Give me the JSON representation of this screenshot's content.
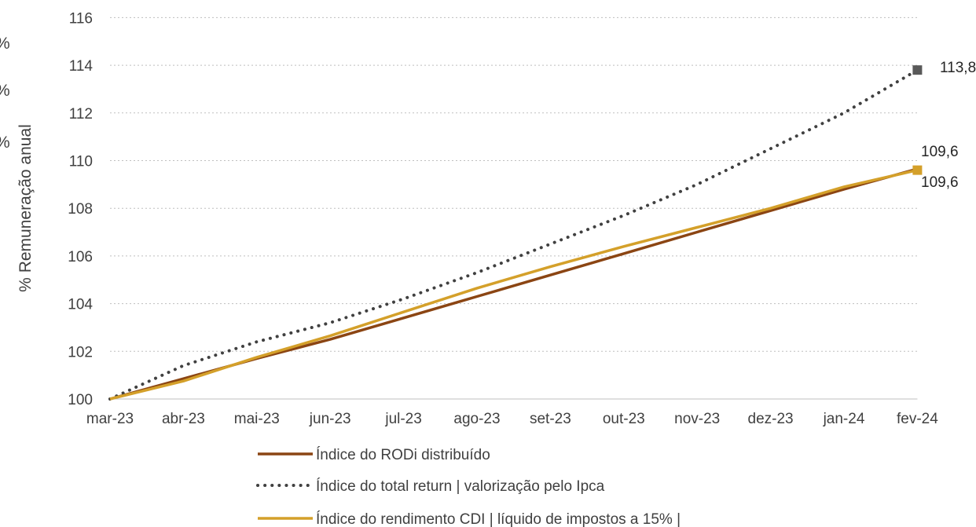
{
  "chart_data": {
    "type": "line",
    "ylabel": "% Remuneração  anual",
    "ylim": [
      100,
      116
    ],
    "yticks": [
      100,
      102,
      104,
      106,
      108,
      110,
      112,
      114,
      116
    ],
    "categories": [
      "mar-23",
      "abr-23",
      "mai-23",
      "jun-23",
      "jul-23",
      "ago-23",
      "set-23",
      "out-23",
      "nov-23",
      "dez-23",
      "jan-24",
      "fev-24"
    ],
    "grid": "horizontal dotted",
    "legend_position": "bottom",
    "left_edge_fragments": [
      "%",
      "%",
      "%"
    ],
    "series": [
      {
        "name": "Índice do RODi distribuído",
        "color": "#8B4513",
        "style": "solid",
        "values": [
          100.0,
          100.85,
          101.7,
          102.5,
          103.4,
          104.3,
          105.2,
          106.1,
          107.0,
          107.9,
          108.8,
          109.65
        ]
      },
      {
        "name": "Índice do total return | valorização pelo Ipca",
        "color": "#404040",
        "style": "dotted",
        "values": [
          100.0,
          101.4,
          102.4,
          103.2,
          104.2,
          105.3,
          106.5,
          107.7,
          109.0,
          110.5,
          112.0,
          113.8
        ],
        "end_label": "113,8"
      },
      {
        "name": "Índice do rendimento CDI | líquido de impostos a 15% |",
        "color": "#D4A02A",
        "style": "solid",
        "values": [
          100.0,
          100.75,
          101.75,
          102.65,
          103.65,
          104.65,
          105.55,
          106.4,
          107.2,
          108.0,
          108.9,
          109.6
        ]
      }
    ],
    "end_labels": [
      "109,6",
      "109,6"
    ]
  }
}
